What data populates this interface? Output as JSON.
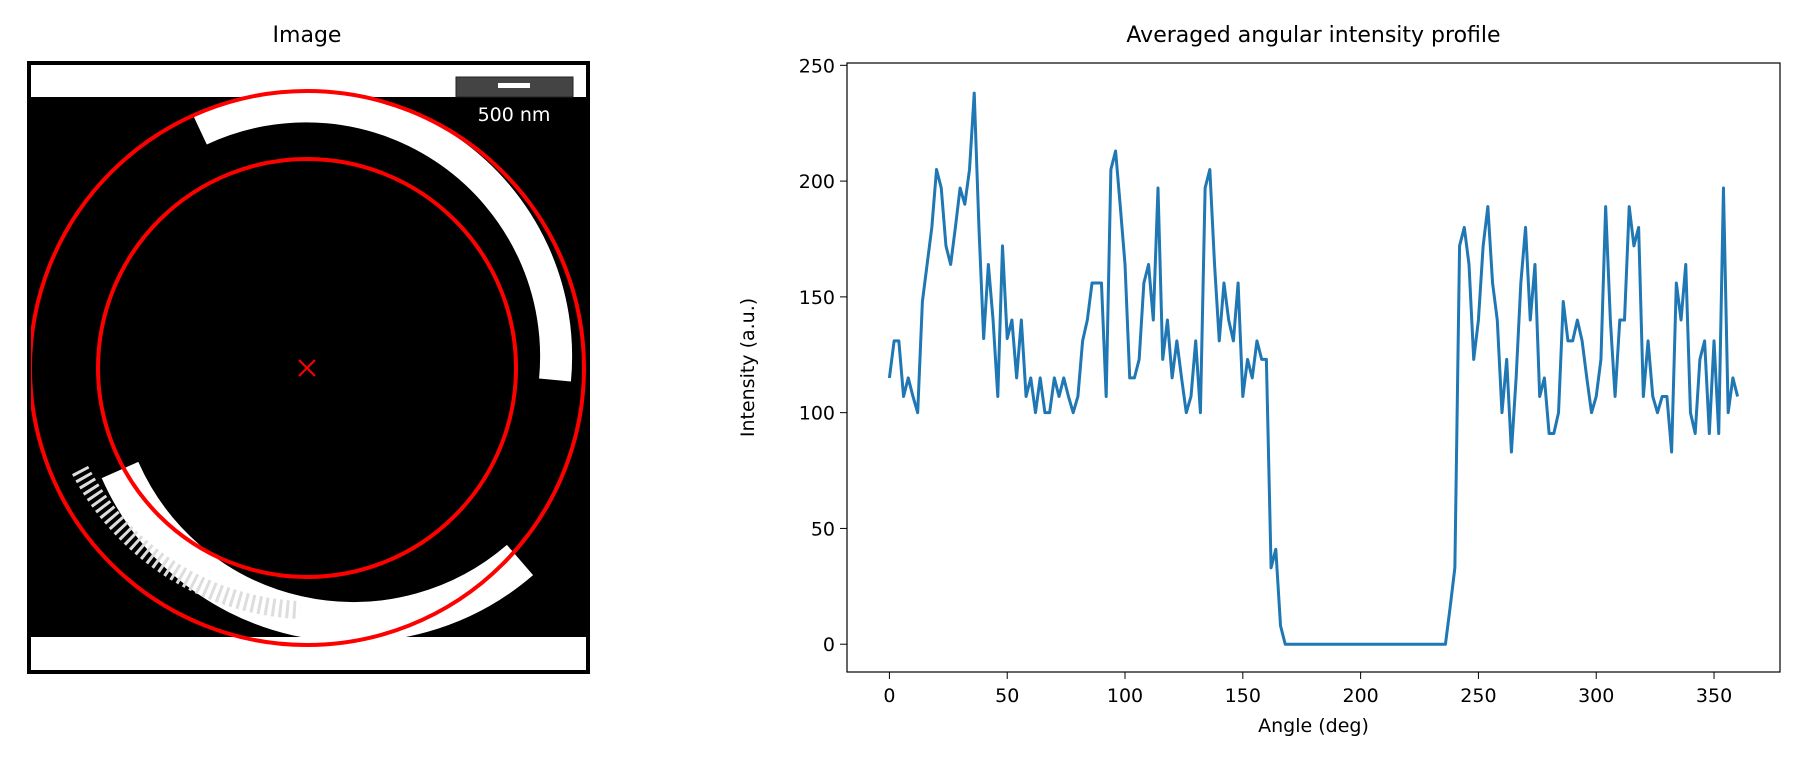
{
  "chart_data": [
    {
      "type": "image",
      "title": "Image",
      "scale_bar_label": "500 nm"
    },
    {
      "type": "line",
      "title": "Averaged angular intensity profile",
      "x_label": "Angle (deg)",
      "y_label": "Intensity (a.u.)",
      "color": "#1f77b4",
      "x": [
        0,
        2,
        4,
        6,
        8,
        10,
        12,
        14,
        16,
        18,
        20,
        22,
        24,
        26,
        28,
        30,
        32,
        34,
        36,
        38,
        40,
        42,
        44,
        46,
        48,
        50,
        52,
        54,
        56,
        58,
        60,
        62,
        64,
        66,
        68,
        70,
        72,
        74,
        76,
        78,
        80,
        82,
        84,
        86,
        88,
        90,
        92,
        94,
        96,
        98,
        100,
        102,
        104,
        106,
        108,
        110,
        112,
        114,
        116,
        118,
        120,
        122,
        124,
        126,
        128,
        130,
        132,
        134,
        136,
        138,
        140,
        142,
        144,
        146,
        148,
        150,
        152,
        154,
        156,
        158,
        160,
        162,
        164,
        166,
        168,
        170,
        172,
        174,
        176,
        178,
        180,
        182,
        184,
        186,
        188,
        190,
        192,
        194,
        196,
        198,
        200,
        202,
        204,
        206,
        208,
        210,
        212,
        214,
        216,
        218,
        220,
        222,
        224,
        226,
        228,
        230,
        232,
        234,
        236,
        238,
        240,
        242,
        244,
        246,
        248,
        250,
        252,
        254,
        256,
        258,
        260,
        262,
        264,
        266,
        268,
        270,
        272,
        274,
        276,
        278,
        280,
        282,
        284,
        286,
        288,
        290,
        292,
        294,
        296,
        298,
        300,
        302,
        304,
        306,
        308,
        310,
        312,
        314,
        316,
        318,
        320,
        322,
        324,
        326,
        328,
        330,
        332,
        334,
        336,
        338,
        340,
        342,
        344,
        346,
        348,
        350,
        352,
        354,
        356,
        358,
        360
      ],
      "values": [
        115,
        131,
        131,
        107,
        115,
        107,
        100,
        148,
        164,
        180,
        205,
        197,
        172,
        164,
        180,
        197,
        190,
        205,
        238,
        180,
        132,
        164,
        140,
        107,
        172,
        132,
        140,
        115,
        140,
        107,
        115,
        100,
        115,
        100,
        100,
        115,
        107,
        115,
        107,
        100,
        107,
        131,
        140,
        156,
        156,
        156,
        107,
        205,
        213,
        189,
        164,
        115,
        115,
        123,
        156,
        164,
        140,
        197,
        123,
        140,
        115,
        131,
        115,
        100,
        107,
        131,
        100,
        197,
        205,
        164,
        131,
        156,
        140,
        131,
        156,
        107,
        123,
        115,
        131,
        123,
        123,
        33,
        41,
        8,
        0,
        0,
        0,
        0,
        0,
        0,
        0,
        0,
        0,
        0,
        0,
        0,
        0,
        0,
        0,
        0,
        0,
        0,
        0,
        0,
        0,
        0,
        0,
        0,
        0,
        0,
        0,
        0,
        0,
        0,
        0,
        0,
        0,
        0,
        0,
        16,
        33,
        172,
        180,
        164,
        123,
        140,
        172,
        189,
        156,
        140,
        100,
        123,
        83,
        115,
        156,
        180,
        140,
        164,
        107,
        115,
        91,
        91,
        100,
        148,
        131,
        131,
        140,
        131,
        115,
        100,
        107,
        123,
        189,
        140,
        107,
        140,
        140,
        189,
        172,
        180,
        107,
        131,
        107,
        100,
        107,
        107,
        83,
        156,
        140,
        164,
        100,
        91,
        123,
        131,
        91,
        131,
        91,
        197,
        100,
        115,
        107
      ],
      "xlim": [
        -18,
        378
      ],
      "ylim": [
        -12,
        251
      ],
      "xticks": [
        0,
        50,
        100,
        150,
        200,
        250,
        300,
        350
      ],
      "yticks": [
        0,
        50,
        100,
        150,
        200,
        250
      ]
    }
  ]
}
